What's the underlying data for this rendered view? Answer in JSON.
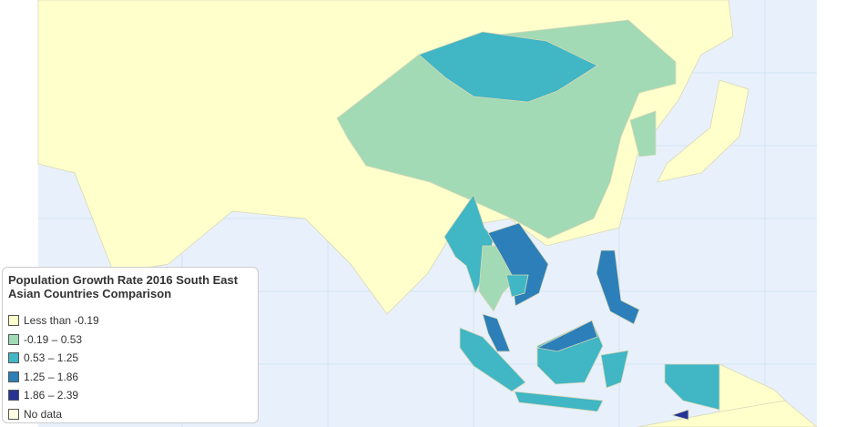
{
  "map": {
    "legend": {
      "title": "Population Growth Rate 2016 South East Asian Countries Comparison",
      "items": [
        {
          "label": "Less than -0.19",
          "color": "#ffffcc"
        },
        {
          "label": "-0.19 – 0.53",
          "color": "#a1dab4"
        },
        {
          "label": "0.53 – 1.25",
          "color": "#41b6c4"
        },
        {
          "label": "1.25 – 1.86",
          "color": "#2c7fb8"
        },
        {
          "label": "1.86 – 2.39",
          "color": "#253494"
        },
        {
          "label": "No data",
          "color": "#fdfde3"
        }
      ]
    }
  }
}
